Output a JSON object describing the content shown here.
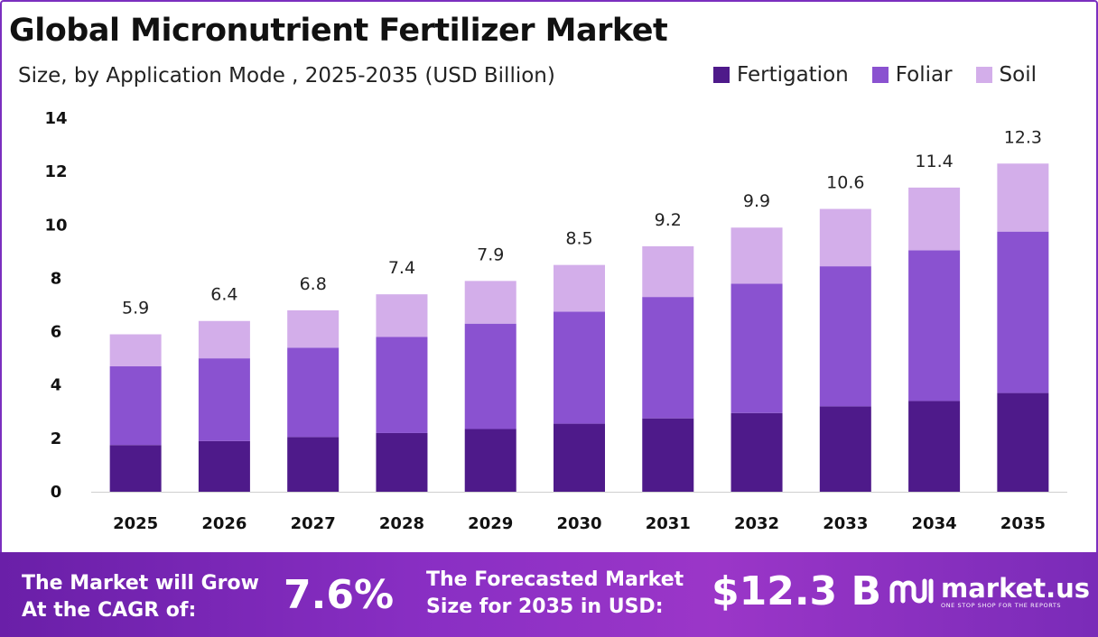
{
  "header": {
    "title": "Global Micronutrient Fertilizer Market",
    "subtitle": "Size, by Application Mode , 2025-2035 (USD Billion)"
  },
  "legend": [
    {
      "label": "Fertigation",
      "color": "#4e1a8a"
    },
    {
      "label": "Foliar",
      "color": "#8a52d0"
    },
    {
      "label": "Soil",
      "color": "#d3aeea"
    }
  ],
  "chart_data": {
    "type": "bar",
    "stacked": true,
    "title": "Global Micronutrient Fertilizer Market",
    "subtitle": "Size, by Application Mode , 2025-2035 (USD Billion)",
    "categories": [
      "2025",
      "2026",
      "2027",
      "2028",
      "2029",
      "2030",
      "2031",
      "2032",
      "2033",
      "2034",
      "2035"
    ],
    "series": [
      {
        "name": "Fertigation",
        "color": "#4e1a8a",
        "values": [
          1.75,
          1.9,
          2.05,
          2.2,
          2.35,
          2.55,
          2.75,
          2.95,
          3.2,
          3.4,
          3.7
        ]
      },
      {
        "name": "Foliar",
        "color": "#8a52d0",
        "values": [
          2.95,
          3.1,
          3.35,
          3.6,
          3.95,
          4.2,
          4.55,
          4.85,
          5.25,
          5.65,
          6.05
        ]
      },
      {
        "name": "Soil",
        "color": "#d3aeea",
        "values": [
          1.2,
          1.4,
          1.4,
          1.6,
          1.6,
          1.75,
          1.9,
          2.1,
          2.15,
          2.35,
          2.55
        ]
      }
    ],
    "totals": [
      "5.9",
      "6.4",
      "6.8",
      "7.4",
      "7.9",
      "8.5",
      "9.2",
      "9.9",
      "10.6",
      "11.4",
      "12.3"
    ],
    "ylim": [
      0,
      14
    ],
    "yticks": [
      0,
      2,
      4,
      6,
      8,
      10,
      12,
      14
    ],
    "legend_position": "top-right",
    "grid": false
  },
  "footer": {
    "cagr_label_line1": "The Market will Grow",
    "cagr_label_line2": "At the CAGR of:",
    "cagr_value": "7.6%",
    "forecast_label_line1": "The Forecasted Market",
    "forecast_label_line2": "Size for 2035 in USD:",
    "forecast_value": "$12.3 B",
    "brand_name": "market.us",
    "brand_tagline": "ONE STOP SHOP FOR THE REPORTS",
    "brand_logo_icon": "market-us-logo-icon"
  }
}
